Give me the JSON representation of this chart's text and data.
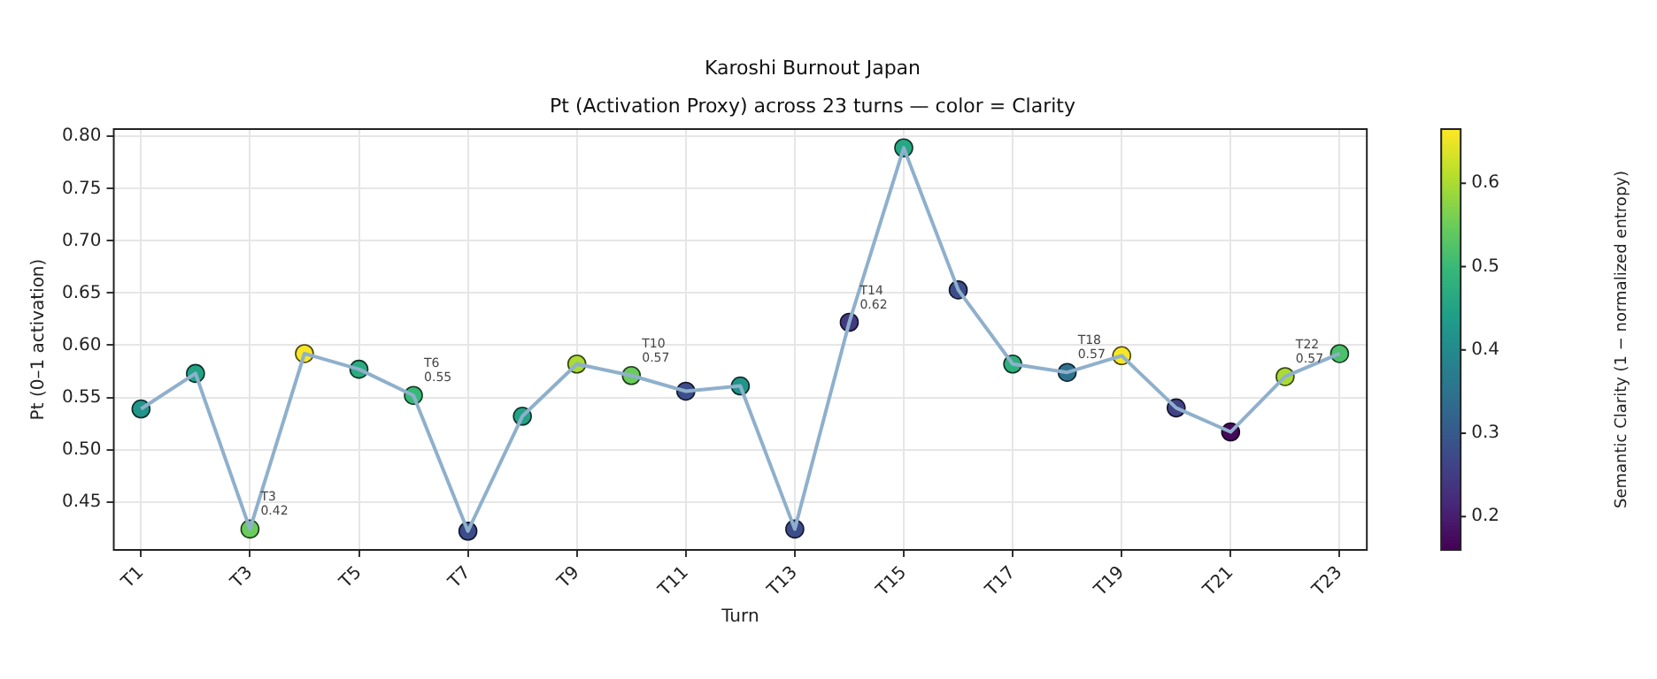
{
  "chart_data": {
    "type": "line",
    "title": "Karoshi Burnout Japan",
    "subtitle": "Pt (Activation Proxy) across 23 turns — color = Clarity",
    "xlabel": "Turn",
    "ylabel": "Pt (0–1 activation)",
    "clabel": "Semantic Clarity (1 − normalized entropy)",
    "categories": [
      "T1",
      null,
      "T3",
      null,
      "T5",
      null,
      "T7",
      null,
      "T9",
      null,
      "T11",
      null,
      "T13",
      null,
      "T15",
      null,
      "T17",
      null,
      "T19",
      null,
      "T21",
      null,
      "T23"
    ],
    "series": [
      {
        "color": "#8fb0cc",
        "values": [
          0.539,
          0.573,
          0.424,
          0.592,
          0.577,
          0.552,
          0.422,
          0.532,
          0.582,
          0.571,
          0.556,
          0.561,
          0.424,
          0.622,
          0.789,
          0.653,
          0.582,
          0.574,
          0.59,
          0.54,
          0.517,
          0.57,
          0.592
        ]
      },
      {
        "type": "scatter",
        "marker": "circle",
        "colors": [
          "#229489",
          "#23a286",
          "#6acc5b",
          "#f7e626",
          "#2bab81",
          "#38b877",
          "#3c4d8a",
          "#23a286",
          "#a9db33",
          "#6acc5b",
          "#3c4d8a",
          "#229489",
          "#3c4d8a",
          "#423c82",
          "#27a783",
          "#3c4d8a",
          "#2eb07e",
          "#2d728e",
          "#f7e626",
          "#404285",
          "#45085a",
          "#a9db33",
          "#4cc06c"
        ],
        "values": [
          0.539,
          0.573,
          0.424,
          0.592,
          0.577,
          0.552,
          0.422,
          0.532,
          0.582,
          0.571,
          0.556,
          0.561,
          0.424,
          0.622,
          0.789,
          0.653,
          0.582,
          0.574,
          0.59,
          0.54,
          0.517,
          0.57,
          0.592
        ],
        "cvalues": [
          0.42,
          0.45,
          0.55,
          0.66,
          0.47,
          0.5,
          0.28,
          0.45,
          0.6,
          0.55,
          0.28,
          0.42,
          0.28,
          0.25,
          0.46,
          0.28,
          0.48,
          0.35,
          0.66,
          0.26,
          0.17,
          0.6,
          0.52
        ],
        "value_labels": [
          null,
          null,
          "T3\n0.42",
          null,
          null,
          "T6\n0.55",
          null,
          null,
          null,
          "T10\n0.57",
          null,
          null,
          null,
          "T14\n0.62",
          null,
          null,
          null,
          "T18\n0.57",
          null,
          null,
          null,
          "T22\n0.57",
          null
        ]
      }
    ],
    "ylim": [
      0.404,
      0.807
    ],
    "yticks": [
      {
        "value": 0.45,
        "label": "0.45"
      },
      {
        "value": 0.5,
        "label": "0.50"
      },
      {
        "value": 0.55,
        "label": "0.55"
      },
      {
        "value": 0.6,
        "label": "0.60"
      },
      {
        "value": 0.65,
        "label": "0.65"
      },
      {
        "value": 0.7,
        "label": "0.70"
      },
      {
        "value": 0.75,
        "label": "0.75"
      },
      {
        "value": 0.8,
        "label": "0.80"
      }
    ],
    "clim": [
      0.16,
      0.665
    ],
    "cticks": [
      0.2,
      0.3,
      0.4,
      0.5,
      0.6
    ],
    "grid": true
  }
}
